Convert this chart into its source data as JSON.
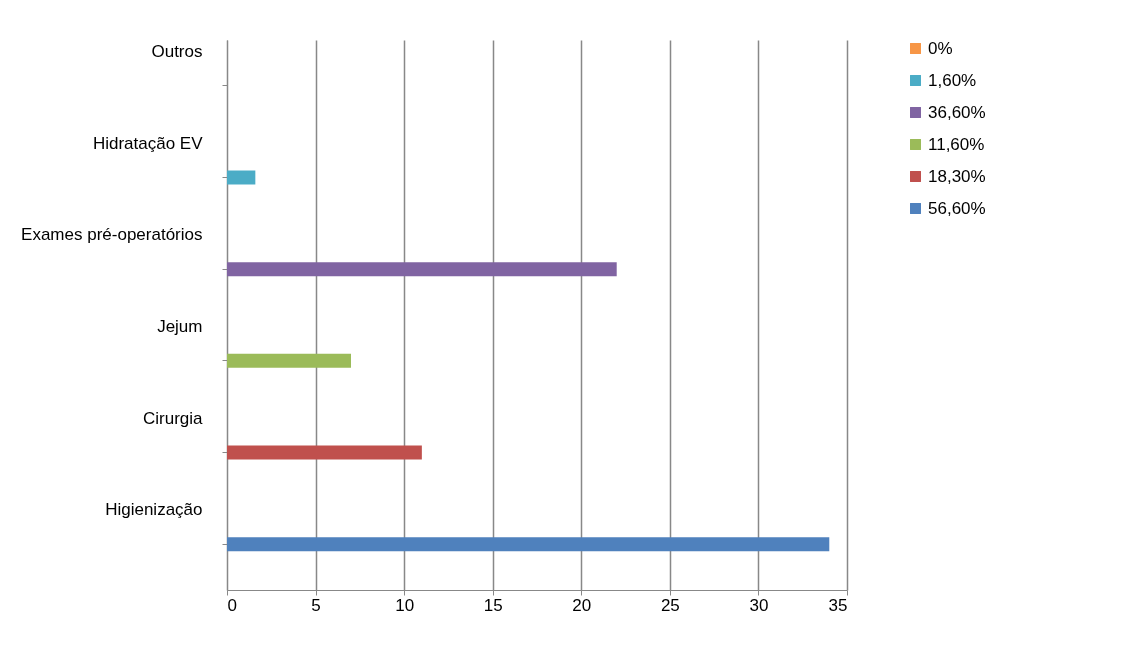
{
  "chart_data": {
    "type": "bar",
    "orientation": "horizontal",
    "categories": [
      "Outros",
      "Hidratação EV",
      "Exames pré-operatórios",
      "Jejum",
      "Cirurgia",
      "Higienização"
    ],
    "series": [
      {
        "name": "0%",
        "color": "#f79646",
        "values": [
          0,
          null,
          null,
          null,
          null,
          null
        ]
      },
      {
        "name": "1,60%",
        "color": "#4bacc6",
        "values": [
          null,
          1.6,
          null,
          null,
          null,
          null
        ]
      },
      {
        "name": "36,60%",
        "color": "#8064a2",
        "values": [
          null,
          null,
          22,
          null,
          null,
          null
        ]
      },
      {
        "name": "11,60%",
        "color": "#9bbb59",
        "values": [
          null,
          null,
          null,
          7,
          null,
          null
        ]
      },
      {
        "name": "18,30%",
        "color": "#c0504d",
        "values": [
          null,
          null,
          null,
          null,
          11,
          null
        ]
      },
      {
        "name": "56,60%",
        "color": "#4f81bd",
        "values": [
          null,
          null,
          null,
          null,
          null,
          34
        ]
      }
    ],
    "xlim": [
      0,
      35
    ],
    "xticks": [
      0,
      5,
      10,
      15,
      20,
      25,
      30,
      35
    ],
    "grid": "x",
    "legend": "right"
  }
}
